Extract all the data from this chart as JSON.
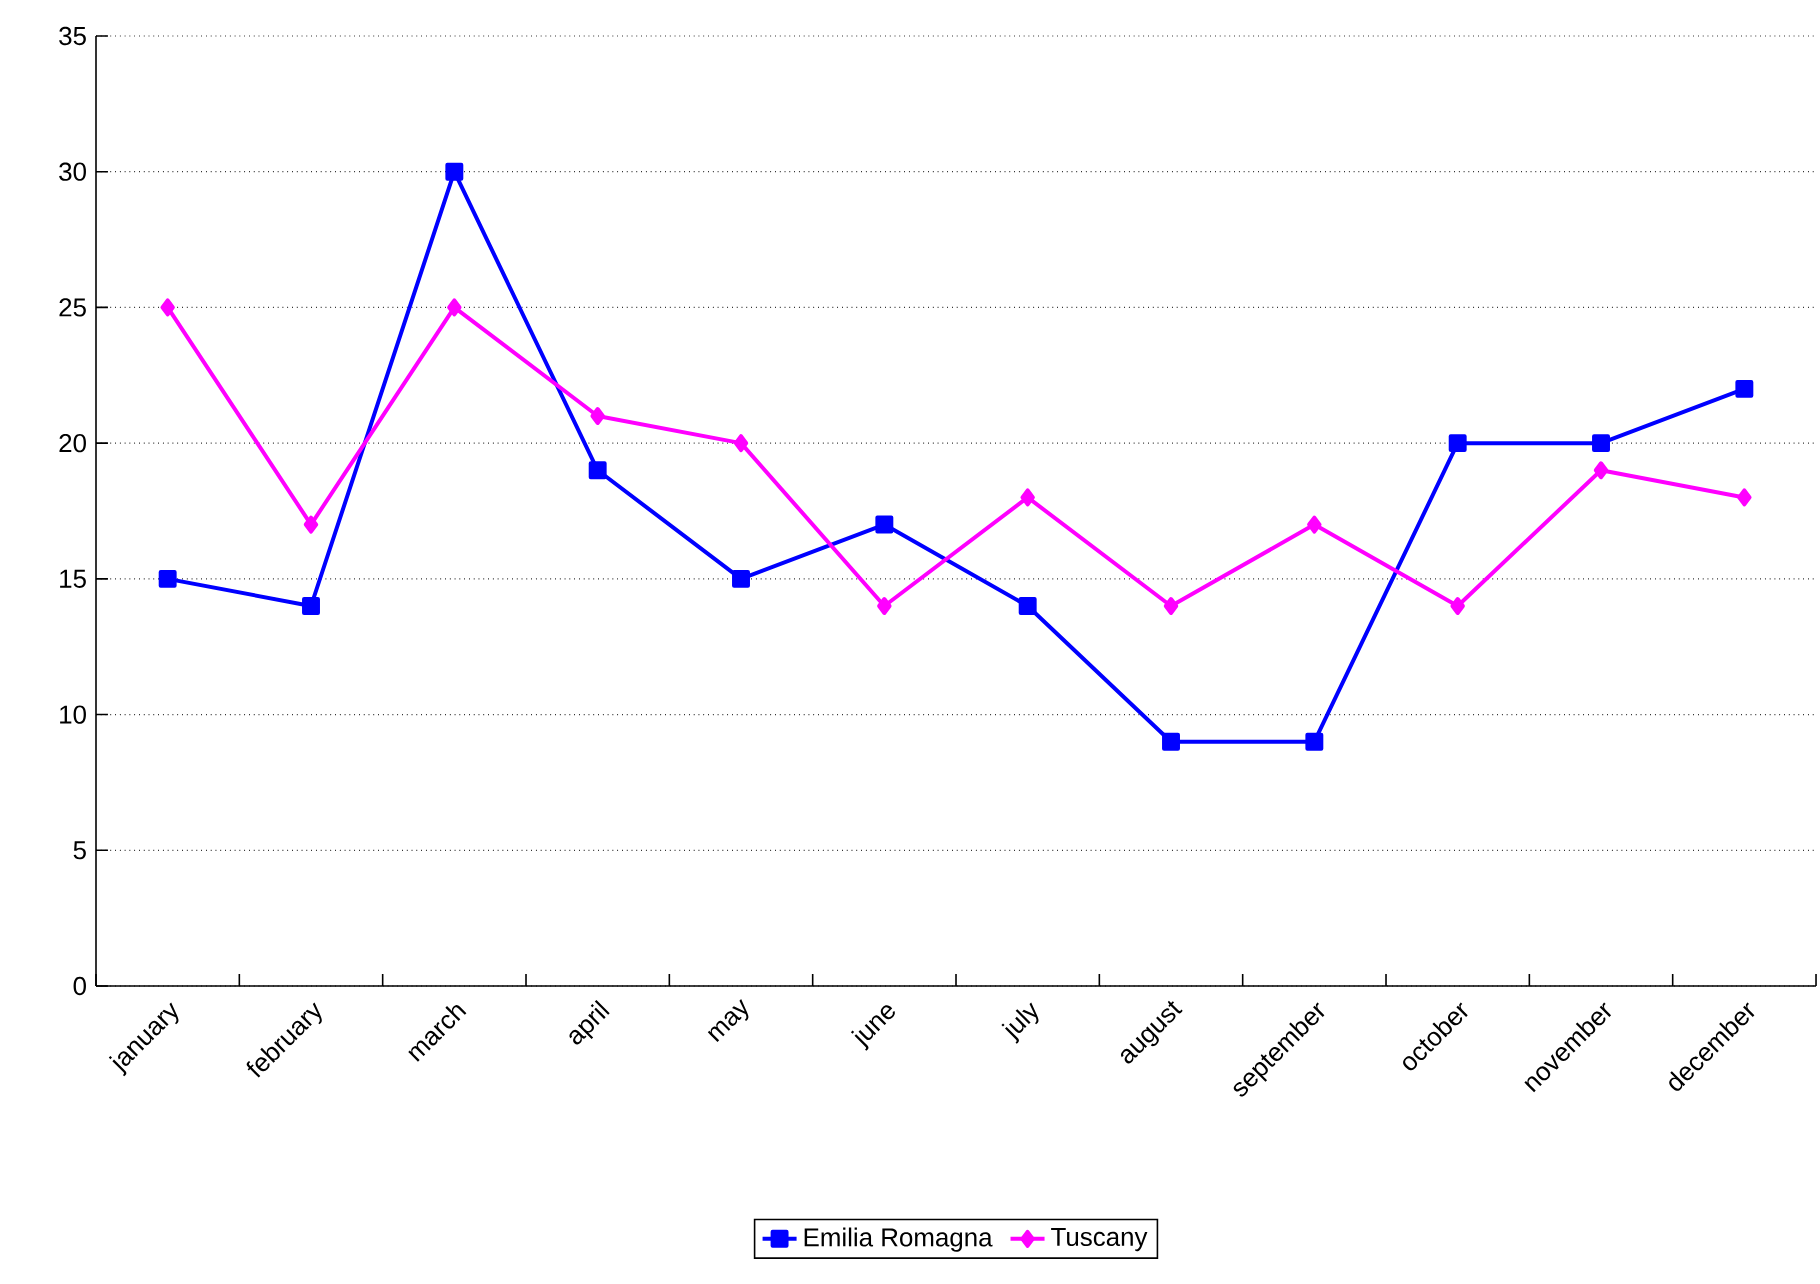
{
  "chart_data": {
    "type": "line",
    "categories": [
      "january",
      "february",
      "march",
      "april",
      "may",
      "june",
      "july",
      "august",
      "september",
      "october",
      "november",
      "december"
    ],
    "series": [
      {
        "name": "Emilia Romagna",
        "color": "#0000ff",
        "marker": "square",
        "values": [
          15,
          14,
          30,
          19,
          15,
          17,
          14,
          9,
          9,
          20,
          20,
          22
        ]
      },
      {
        "name": "Tuscany",
        "color": "#ff00ff",
        "marker": "diamond",
        "values": [
          25,
          17,
          25,
          21,
          20,
          14,
          18,
          14,
          17,
          14,
          19,
          18
        ]
      }
    ],
    "ylim": [
      0,
      35
    ],
    "yticks": [
      0,
      5,
      10,
      15,
      20,
      25,
      30,
      35
    ],
    "grid": "y",
    "legend": "bottom",
    "line_style": "solid"
  }
}
